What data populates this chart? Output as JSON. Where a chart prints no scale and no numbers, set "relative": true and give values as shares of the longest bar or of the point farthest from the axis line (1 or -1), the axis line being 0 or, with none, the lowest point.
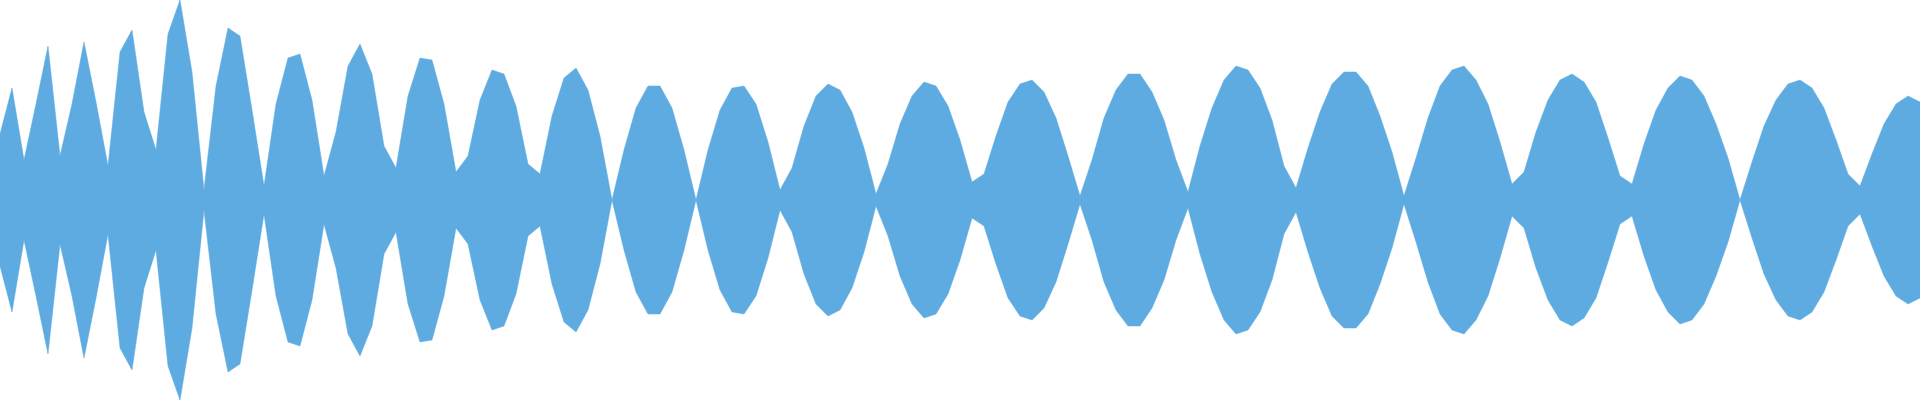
{
  "chart_data": {
    "type": "area",
    "relative": true,
    "categories": [
      null,
      null,
      null,
      null,
      null,
      null,
      null,
      null,
      null,
      null,
      null,
      null,
      null,
      null,
      null,
      null,
      null,
      null,
      null,
      null,
      null,
      null,
      null,
      null,
      null,
      null,
      null,
      null,
      null,
      null,
      null,
      null,
      null,
      null,
      null,
      null,
      null,
      null,
      null,
      null,
      null,
      null,
      null,
      null,
      null,
      null,
      null,
      null,
      null,
      null,
      null,
      null,
      null,
      null,
      null,
      null,
      null,
      null,
      null,
      null,
      null,
      null,
      null,
      null,
      null,
      null,
      null,
      null,
      null,
      null,
      null,
      null,
      null,
      null,
      null,
      null,
      null,
      null,
      null,
      null,
      null,
      null,
      null,
      null,
      null,
      null,
      null,
      null,
      null,
      null,
      null,
      null,
      null,
      null,
      null,
      null,
      null,
      null,
      null,
      null,
      null,
      null,
      null,
      null,
      null,
      null,
      null,
      null,
      null,
      null,
      null,
      null,
      null,
      null,
      null,
      null,
      null,
      null,
      null,
      null,
      null,
      null,
      null,
      null,
      null,
      null,
      null,
      null,
      null,
      null,
      null,
      null,
      null,
      null,
      null,
      null,
      null,
      null,
      null,
      null,
      null,
      null,
      null,
      null,
      null,
      null,
      null,
      null,
      null,
      null,
      null,
      null,
      null,
      null,
      null,
      null,
      null,
      null,
      null,
      null,
      null
    ],
    "series": [
      {
        "color": "#5dabe0",
        "values": [
          0.33,
          0.56,
          0.2,
          0.48,
          0.77,
          0.22,
          0.48,
          0.79,
          0.49,
          0.17,
          0.74,
          0.85,
          0.44,
          0.25,
          0.83,
          1,
          0.64,
          0.05,
          0.57,
          0.86,
          0.82,
          0.45,
          0.07,
          0.48,
          0.71,
          0.73,
          0.5,
          0.12,
          0.34,
          0.67,
          0.78,
          0.63,
          0.27,
          0.16,
          0.52,
          0.71,
          0.7,
          0.48,
          0.14,
          0.22,
          0.5,
          0.65,
          0.63,
          0.47,
          0.18,
          0.13,
          0.42,
          0.61,
          0.66,
          0.55,
          0.32,
          0,
          0.25,
          0.46,
          0.57,
          0.57,
          0.46,
          0.25,
          0,
          0.25,
          0.45,
          0.56,
          0.57,
          0.48,
          0.29,
          0.05,
          0.16,
          0.37,
          0.52,
          0.58,
          0.55,
          0.44,
          0.26,
          0.03,
          0.18,
          0.38,
          0.52,
          0.59,
          0.57,
          0.47,
          0.3,
          0.09,
          0.13,
          0.32,
          0.49,
          0.58,
          0.6,
          0.54,
          0.41,
          0.22,
          0.02,
          0.2,
          0.41,
          0.55,
          0.63,
          0.63,
          0.54,
          0.4,
          0.2,
          0.04,
          0.27,
          0.46,
          0.6,
          0.67,
          0.65,
          0.56,
          0.4,
          0.17,
          0.06,
          0.26,
          0.44,
          0.58,
          0.64,
          0.64,
          0.57,
          0.42,
          0.24,
          0.02,
          0.21,
          0.41,
          0.57,
          0.65,
          0.67,
          0.6,
          0.48,
          0.29,
          0.08,
          0.14,
          0.34,
          0.5,
          0.6,
          0.63,
          0.59,
          0.49,
          0.31,
          0.12,
          0.08,
          0.28,
          0.45,
          0.56,
          0.62,
          0.6,
          0.52,
          0.38,
          0.21,
          0,
          0.19,
          0.37,
          0.5,
          0.58,
          0.6,
          0.56,
          0.46,
          0.3,
          0.13,
          0.07,
          0.23,
          0.38,
          0.48,
          0.52,
          0.49
        ]
      }
    ]
  }
}
